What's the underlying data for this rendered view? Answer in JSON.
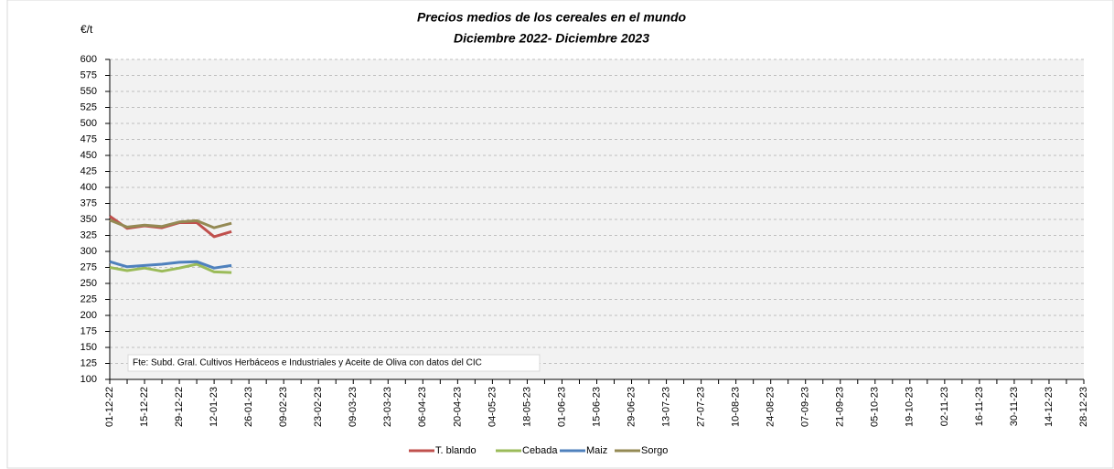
{
  "chart_data": {
    "type": "line",
    "title": "Precios medios de los cereales en el mundo",
    "subtitle": "Diciembre 2022- Diciembre 2023",
    "y_label": "€/t",
    "annotation": "Fte: Subd. Gral. Cultivos Herbáceos e Industriales y Aceite de Oliva con datos del CIC",
    "categories": [
      "01-12-22",
      null,
      "15-12-22",
      null,
      "29-12-22",
      null,
      "12-01-23",
      null,
      "26-01-23",
      null,
      "09-02-23",
      null,
      "23-02-23",
      null,
      "09-03-23",
      null,
      "23-03-23",
      null,
      "06-04-23",
      null,
      "20-04-23",
      null,
      "04-05-23",
      null,
      "18-05-23",
      null,
      "01-06-23",
      null,
      "15-06-23",
      null,
      "29-06-23",
      null,
      "13-07-23",
      null,
      "27-07-23",
      null,
      "10-08-23",
      null,
      "24-08-23",
      null,
      "07-09-23",
      null,
      "21-09-23",
      null,
      "05-10-23",
      null,
      "19-10-23",
      null,
      "02-11-23",
      null,
      "16-11-23",
      null,
      "30-11-23",
      null,
      "14-12-23",
      null,
      "28-12-23"
    ],
    "series": [
      {
        "name": "T. blando",
        "color": "#c0504d",
        "values": [
          355,
          336,
          340,
          337,
          345,
          345,
          323,
          331,
          null,
          null,
          null,
          null,
          null,
          null,
          null,
          null,
          null,
          null,
          null,
          null,
          null,
          null,
          null,
          null,
          null,
          null,
          null,
          null,
          null,
          null,
          null,
          null,
          null,
          null,
          null,
          null,
          null,
          null,
          null,
          null,
          null,
          null,
          null,
          null,
          null,
          null,
          null,
          null,
          null,
          null,
          null,
          null,
          null,
          null,
          null,
          null,
          null
        ]
      },
      {
        "name": "Cebada",
        "color": "#9bbb59",
        "values": [
          275,
          270,
          274,
          269,
          274,
          280,
          268,
          267,
          null,
          null,
          null,
          null,
          null,
          null,
          null,
          null,
          null,
          null,
          null,
          null,
          null,
          null,
          null,
          null,
          null,
          null,
          null,
          null,
          null,
          null,
          null,
          null,
          null,
          null,
          null,
          null,
          null,
          null,
          null,
          null,
          null,
          null,
          null,
          null,
          null,
          null,
          null,
          null,
          null,
          null,
          null,
          null,
          null,
          null,
          null,
          null,
          null
        ]
      },
      {
        "name": "Maiz",
        "color": "#4f81bd",
        "values": [
          284,
          276,
          278,
          280,
          283,
          284,
          274,
          278,
          null,
          null,
          null,
          null,
          null,
          null,
          null,
          null,
          null,
          null,
          null,
          null,
          null,
          null,
          null,
          null,
          null,
          null,
          null,
          null,
          null,
          null,
          null,
          null,
          null,
          null,
          null,
          null,
          null,
          null,
          null,
          null,
          null,
          null,
          null,
          null,
          null,
          null,
          null,
          null,
          null,
          null,
          null,
          null,
          null,
          null,
          null,
          null,
          null
        ]
      },
      {
        "name": "Sorgo",
        "color": "#948a54",
        "values": [
          349,
          338,
          341,
          339,
          346,
          348,
          337,
          344,
          null,
          null,
          null,
          null,
          null,
          null,
          null,
          null,
          null,
          null,
          null,
          null,
          null,
          null,
          null,
          null,
          null,
          null,
          null,
          null,
          null,
          null,
          null,
          null,
          null,
          null,
          null,
          null,
          null,
          null,
          null,
          null,
          null,
          null,
          null,
          null,
          null,
          null,
          null,
          null,
          null,
          null,
          null,
          null,
          null,
          null,
          null,
          null,
          null
        ]
      }
    ],
    "ylim": [
      100,
      600
    ],
    "yticks": [
      100,
      125,
      150,
      175,
      200,
      225,
      250,
      275,
      300,
      325,
      350,
      375,
      400,
      425,
      450,
      475,
      500,
      525,
      550,
      575,
      600
    ],
    "grid": true,
    "legend": "bottom"
  }
}
